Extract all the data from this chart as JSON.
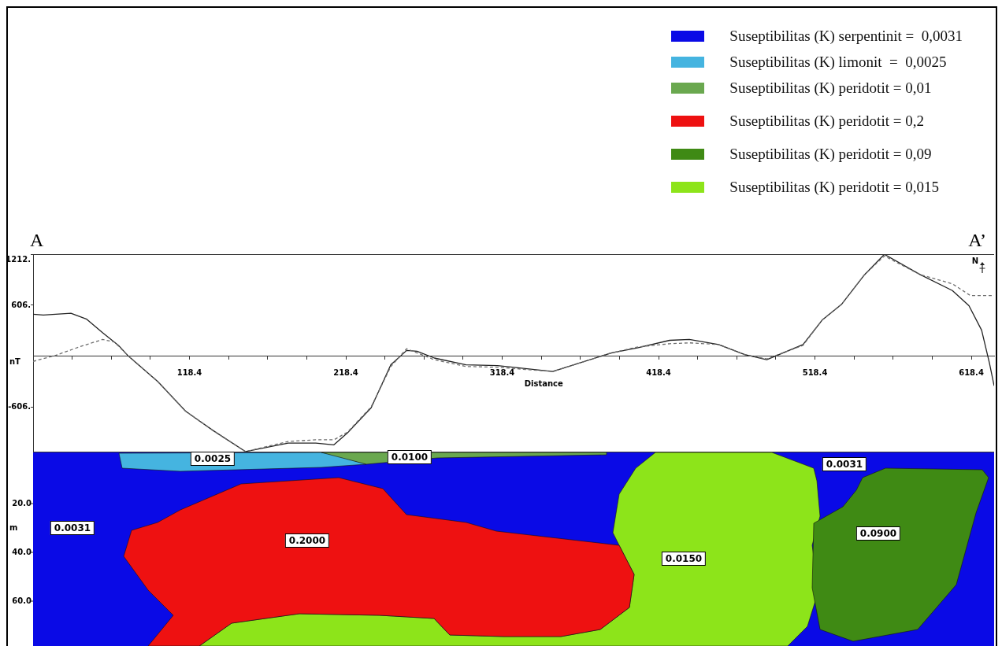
{
  "chart_data": [
    {
      "type": "line",
      "xlabel": "Distance",
      "ylabel": "nT",
      "xlim": [
        18.4,
        633
      ],
      "ylim": [
        -1140,
        1212
      ],
      "xticks": [
        {
          "value": 43.4,
          "label": null
        },
        {
          "value": 68.4,
          "label": null
        },
        {
          "value": 93.4,
          "label": null
        },
        118.4,
        {
          "value": 143.4,
          "label": null
        },
        {
          "value": 168.4,
          "label": null
        },
        {
          "value": 193.4,
          "label": null
        },
        218.4,
        {
          "value": 243.4,
          "label": null
        },
        {
          "value": 268.4,
          "label": null
        },
        {
          "value": 293.4,
          "label": null
        },
        318.4,
        {
          "value": 343.4,
          "label": null
        },
        {
          "value": 368.4,
          "label": null
        },
        {
          "value": 393.4,
          "label": null
        },
        418.4,
        {
          "value": 443.4,
          "label": null
        },
        {
          "value": 468.4,
          "label": null
        },
        {
          "value": 493.4,
          "label": null
        },
        518.4,
        {
          "value": 543.4,
          "label": null
        },
        {
          "value": 568.4,
          "label": null
        },
        {
          "value": 593.4,
          "label": null
        },
        618.4
      ],
      "yticks": [
        {
          "value": 1212,
          "label": "1212."
        },
        {
          "value": 606,
          "label": "606."
        },
        {
          "value": -606,
          "label": "-606."
        }
      ],
      "grid": false,
      "marker": "none",
      "legend": false,
      "annotations": [
        "A",
        "A’",
        "N"
      ],
      "series": [
        {
          "color": "#6e6e6e",
          "line_style": "dashed",
          "x": [
            18.4,
            32.5,
            47.7,
            62.8,
            70.4,
            79.5,
            98.2,
            115.9,
            133.5,
            154.3,
            181.5,
            199.2,
            210.8,
            219.4,
            234.6,
            247.2,
            257.3,
            275,
            295.2,
            315.4,
            350.7,
            388.1,
            404.8,
            425.5,
            438.1,
            456.8,
            473.5,
            487.6,
            510.8,
            523,
            535.6,
            550.2,
            562.8,
            585.6,
            606.3,
            617.9,
            633
          ],
          "values": [
            -60,
            10,
            110,
            200,
            170,
            0,
            -300,
            -650,
            -880,
            -1130,
            -1010,
            -990,
            -990,
            -900,
            -600,
            -120,
            90,
            -40,
            -120,
            -130,
            -180,
            40,
            110,
            150,
            160,
            140,
            20,
            -30,
            130,
            430,
            620,
            970,
            1190,
            970,
            860,
            720,
            720
          ]
        },
        {
          "color": "#222222",
          "line_style": "solid",
          "x": [
            18.4,
            25,
            42.6,
            52.7,
            62.8,
            73,
            79.5,
            98.2,
            115.9,
            133.5,
            154.3,
            181.5,
            199.2,
            210.8,
            219.4,
            234.6,
            247.2,
            257.3,
            263.9,
            275,
            295.2,
            315.4,
            350.7,
            388.1,
            404.8,
            425.5,
            438.1,
            456.8,
            473.5,
            487.6,
            510.8,
            523,
            535.6,
            550.2,
            562.8,
            585.6,
            606.3,
            616.9,
            625,
            630,
            633
          ],
          "values": [
            500,
            490,
            510,
            440,
            280,
            130,
            0,
            -300,
            -650,
            -880,
            -1130,
            -1030,
            -1030,
            -1050,
            -910,
            -610,
            -100,
            70,
            60,
            -20,
            -100,
            -110,
            -180,
            40,
            100,
            190,
            200,
            140,
            20,
            -40,
            140,
            430,
            620,
            970,
            1210,
            970,
            780,
            600,
            310,
            -80,
            -350
          ]
        }
      ]
    },
    {
      "type": "other",
      "ylabel": "m",
      "legend": "top right",
      "series": [
        {
          "name": "Suseptibilitas (K) serpentinit =  0,0031",
          "color": "#0a0ae6"
        },
        {
          "name": "Suseptibilitas (K) limonit  =  0,0025",
          "color": "#45b4e0"
        },
        {
          "name": "Suseptibilitas (K) peridotit = 0,01",
          "color": "#6aa84f"
        },
        {
          "name": "Suseptibilitas (K) peridotit = 0,2",
          "color": "#ee1111"
        },
        {
          "name": "Suseptibilitas (K) peridotit = 0,09",
          "color": "#3f8a14"
        },
        {
          "name": "Suseptibilitas (K) peridotit = 0,015",
          "color": "#8de41a"
        }
      ],
      "annotations": [
        "0.0025",
        "0.0100",
        "0.0031",
        "0.2000",
        "0.0150",
        "0.0031",
        "0.0900",
        "20.0",
        "40.0",
        "60.0"
      ]
    }
  ]
}
